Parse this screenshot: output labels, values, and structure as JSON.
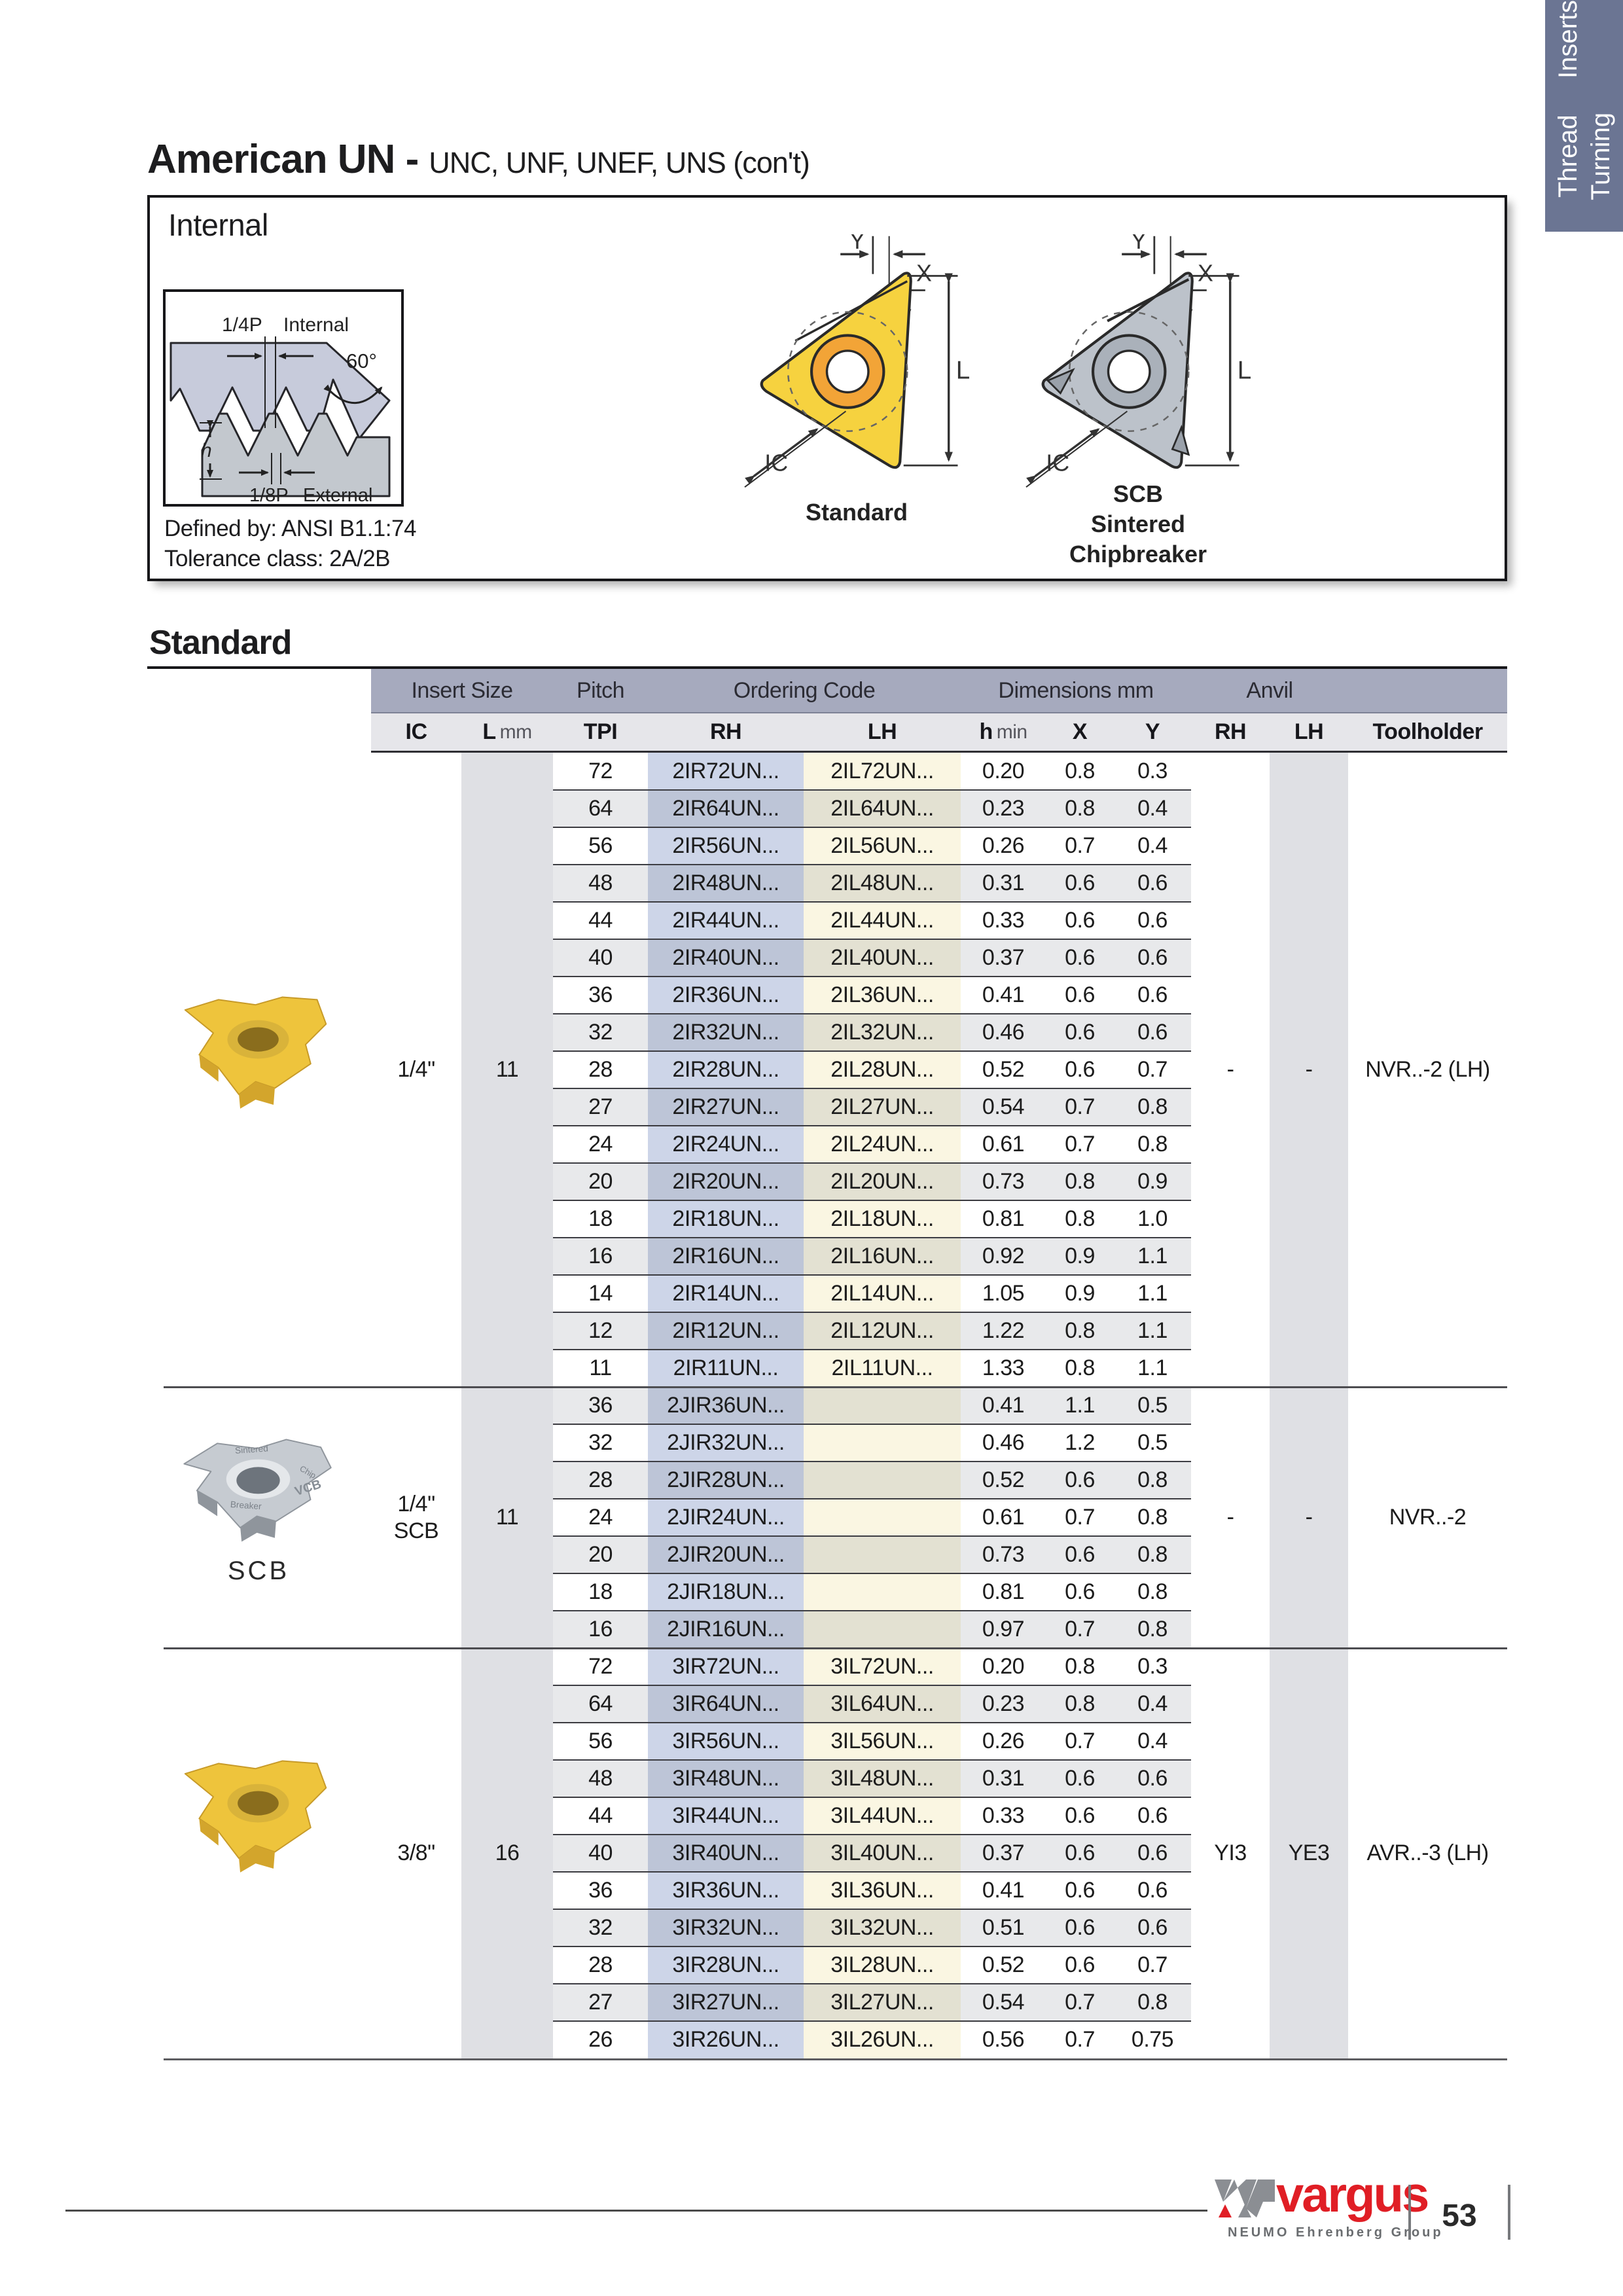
{
  "page": {
    "title_bold": "American UN -",
    "title_rest": "UNC, UNF, UNEF, UNS (con't)",
    "heading": "Standard"
  },
  "tab": {
    "line1": "Thread Turning",
    "line2": "Inserts",
    "bg": "#6b7593"
  },
  "internal": {
    "title": "Internal",
    "defined_by": "Defined by: ANSI B1.1:74",
    "tolerance": "Tolerance class: 2A/2B",
    "diagram": {
      "quarter_p": "1/4P",
      "internal_word": "Internal",
      "angle": "60°",
      "h": "h",
      "eighth_p": "1/8P",
      "external_word": "External"
    },
    "dims": {
      "y": "Y",
      "x": "X",
      "l": "L",
      "ic": "IC"
    },
    "standard_caption": "Standard",
    "scb_caption_1": "SCB",
    "scb_caption_2": "Sintered",
    "scb_caption_3": "Chipbreaker"
  },
  "photos": {
    "scb_caption": "SCB",
    "engravings": {
      "e1": "Sintered",
      "e2": "Breaker",
      "e3": "Chip",
      "e4": "VCB"
    }
  },
  "table": {
    "groups": [
      "Insert Size",
      "Pitch",
      "Ordering Code",
      "Dimensions mm",
      "Anvil"
    ],
    "sub": {
      "ic": "IC",
      "l_main": "L",
      "l_unit": "mm",
      "tpi": "TPI",
      "rh": "RH",
      "lh": "LH",
      "h_main": "h",
      "h_unit": "min",
      "x": "X",
      "y": "Y",
      "rh2": "RH",
      "lh2": "LH",
      "toolholder": "Toolholder"
    },
    "sections": [
      {
        "ic": "1/4\"",
        "ic2": "",
        "l": "11",
        "anvil_rh": "-",
        "anvil_lh": "-",
        "toolholder": "NVR..-2 (LH)",
        "rows": [
          [
            "72",
            "2IR72UN...",
            "2IL72UN...",
            "0.20",
            "0.8",
            "0.3"
          ],
          [
            "64",
            "2IR64UN...",
            "2IL64UN...",
            "0.23",
            "0.8",
            "0.4"
          ],
          [
            "56",
            "2IR56UN...",
            "2IL56UN...",
            "0.26",
            "0.7",
            "0.4"
          ],
          [
            "48",
            "2IR48UN...",
            "2IL48UN...",
            "0.31",
            "0.6",
            "0.6"
          ],
          [
            "44",
            "2IR44UN...",
            "2IL44UN...",
            "0.33",
            "0.6",
            "0.6"
          ],
          [
            "40",
            "2IR40UN...",
            "2IL40UN...",
            "0.37",
            "0.6",
            "0.6"
          ],
          [
            "36",
            "2IR36UN...",
            "2IL36UN...",
            "0.41",
            "0.6",
            "0.6"
          ],
          [
            "32",
            "2IR32UN...",
            "2IL32UN...",
            "0.46",
            "0.6",
            "0.6"
          ],
          [
            "28",
            "2IR28UN...",
            "2IL28UN...",
            "0.52",
            "0.6",
            "0.7"
          ],
          [
            "27",
            "2IR27UN...",
            "2IL27UN...",
            "0.54",
            "0.7",
            "0.8"
          ],
          [
            "24",
            "2IR24UN...",
            "2IL24UN...",
            "0.61",
            "0.7",
            "0.8"
          ],
          [
            "20",
            "2IR20UN...",
            "2IL20UN...",
            "0.73",
            "0.8",
            "0.9"
          ],
          [
            "18",
            "2IR18UN...",
            "2IL18UN...",
            "0.81",
            "0.8",
            "1.0"
          ],
          [
            "16",
            "2IR16UN...",
            "2IL16UN...",
            "0.92",
            "0.9",
            "1.1"
          ],
          [
            "14",
            "2IR14UN...",
            "2IL14UN...",
            "1.05",
            "0.9",
            "1.1"
          ],
          [
            "12",
            "2IR12UN...",
            "2IL12UN...",
            "1.22",
            "0.8",
            "1.1"
          ],
          [
            "11",
            "2IR11UN...",
            "2IL11UN...",
            "1.33",
            "0.8",
            "1.1"
          ]
        ]
      },
      {
        "ic": "1/4\"",
        "ic2": "SCB",
        "l": "11",
        "anvil_rh": "-",
        "anvil_lh": "-",
        "toolholder": "NVR..-2",
        "rows": [
          [
            "36",
            "2JIR36UN...",
            "",
            "0.41",
            "1.1",
            "0.5"
          ],
          [
            "32",
            "2JIR32UN...",
            "",
            "0.46",
            "1.2",
            "0.5"
          ],
          [
            "28",
            "2JIR28UN...",
            "",
            "0.52",
            "0.6",
            "0.8"
          ],
          [
            "24",
            "2JIR24UN...",
            "",
            "0.61",
            "0.7",
            "0.8"
          ],
          [
            "20",
            "2JIR20UN...",
            "",
            "0.73",
            "0.6",
            "0.8"
          ],
          [
            "18",
            "2JIR18UN...",
            "",
            "0.81",
            "0.6",
            "0.8"
          ],
          [
            "16",
            "2JIR16UN...",
            "",
            "0.97",
            "0.7",
            "0.8"
          ]
        ]
      },
      {
        "ic": "3/8\"",
        "ic2": "",
        "l": "16",
        "anvil_rh": "YI3",
        "anvil_lh": "YE3",
        "toolholder": "AVR..-3 (LH)",
        "rows": [
          [
            "72",
            "3IR72UN...",
            "3IL72UN...",
            "0.20",
            "0.8",
            "0.3"
          ],
          [
            "64",
            "3IR64UN...",
            "3IL64UN...",
            "0.23",
            "0.8",
            "0.4"
          ],
          [
            "56",
            "3IR56UN...",
            "3IL56UN...",
            "0.26",
            "0.7",
            "0.4"
          ],
          [
            "48",
            "3IR48UN...",
            "3IL48UN...",
            "0.31",
            "0.6",
            "0.6"
          ],
          [
            "44",
            "3IR44UN...",
            "3IL44UN...",
            "0.33",
            "0.6",
            "0.6"
          ],
          [
            "40",
            "3IR40UN...",
            "3IL40UN...",
            "0.37",
            "0.6",
            "0.6"
          ],
          [
            "36",
            "3IR36UN...",
            "3IL36UN...",
            "0.41",
            "0.6",
            "0.6"
          ],
          [
            "32",
            "3IR32UN...",
            "3IL32UN...",
            "0.51",
            "0.6",
            "0.6"
          ],
          [
            "28",
            "3IR28UN...",
            "3IL28UN...",
            "0.52",
            "0.6",
            "0.7"
          ],
          [
            "27",
            "3IR27UN...",
            "3IL27UN...",
            "0.54",
            "0.7",
            "0.8"
          ],
          [
            "26",
            "3IR26UN...",
            "3IL26UN...",
            "0.56",
            "0.7",
            "0.75"
          ]
        ]
      }
    ]
  },
  "footer": {
    "brand": "vargus",
    "brand_sub": "NEUMO Ehrenberg Group",
    "page_number": "53"
  },
  "colors": {
    "tab_bg": "#6b7593",
    "band": "#a6aabe",
    "subheader": "#e6e6ea",
    "stripe_gray": "#dfe0e4",
    "stripe_blue": "#cdd5e8",
    "stripe_cream": "#faf6e2",
    "brand_red": "#e01e25",
    "insert_yellow": "#f2c83d"
  }
}
